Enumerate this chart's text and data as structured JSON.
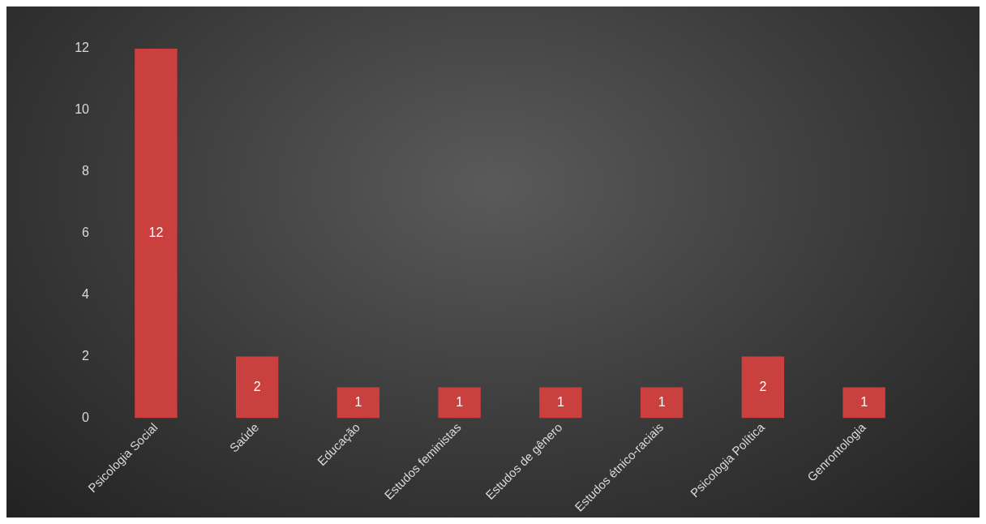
{
  "chart_data": {
    "type": "bar",
    "categories": [
      "Psicologia Social",
      "Saúde",
      "Educação",
      "Estudos feministas",
      "Estudos de gênero",
      "Estudos étnico-raciais",
      "Psicologia Política",
      "Genrontologia"
    ],
    "values": [
      12,
      2,
      1,
      1,
      1,
      1,
      2,
      1
    ],
    "color": "#c9403f",
    "ylim": [
      0,
      12
    ],
    "yticks": [
      0,
      2,
      4,
      6,
      8,
      10,
      12
    ],
    "grid": false,
    "legend": false,
    "data_labels": true
  }
}
